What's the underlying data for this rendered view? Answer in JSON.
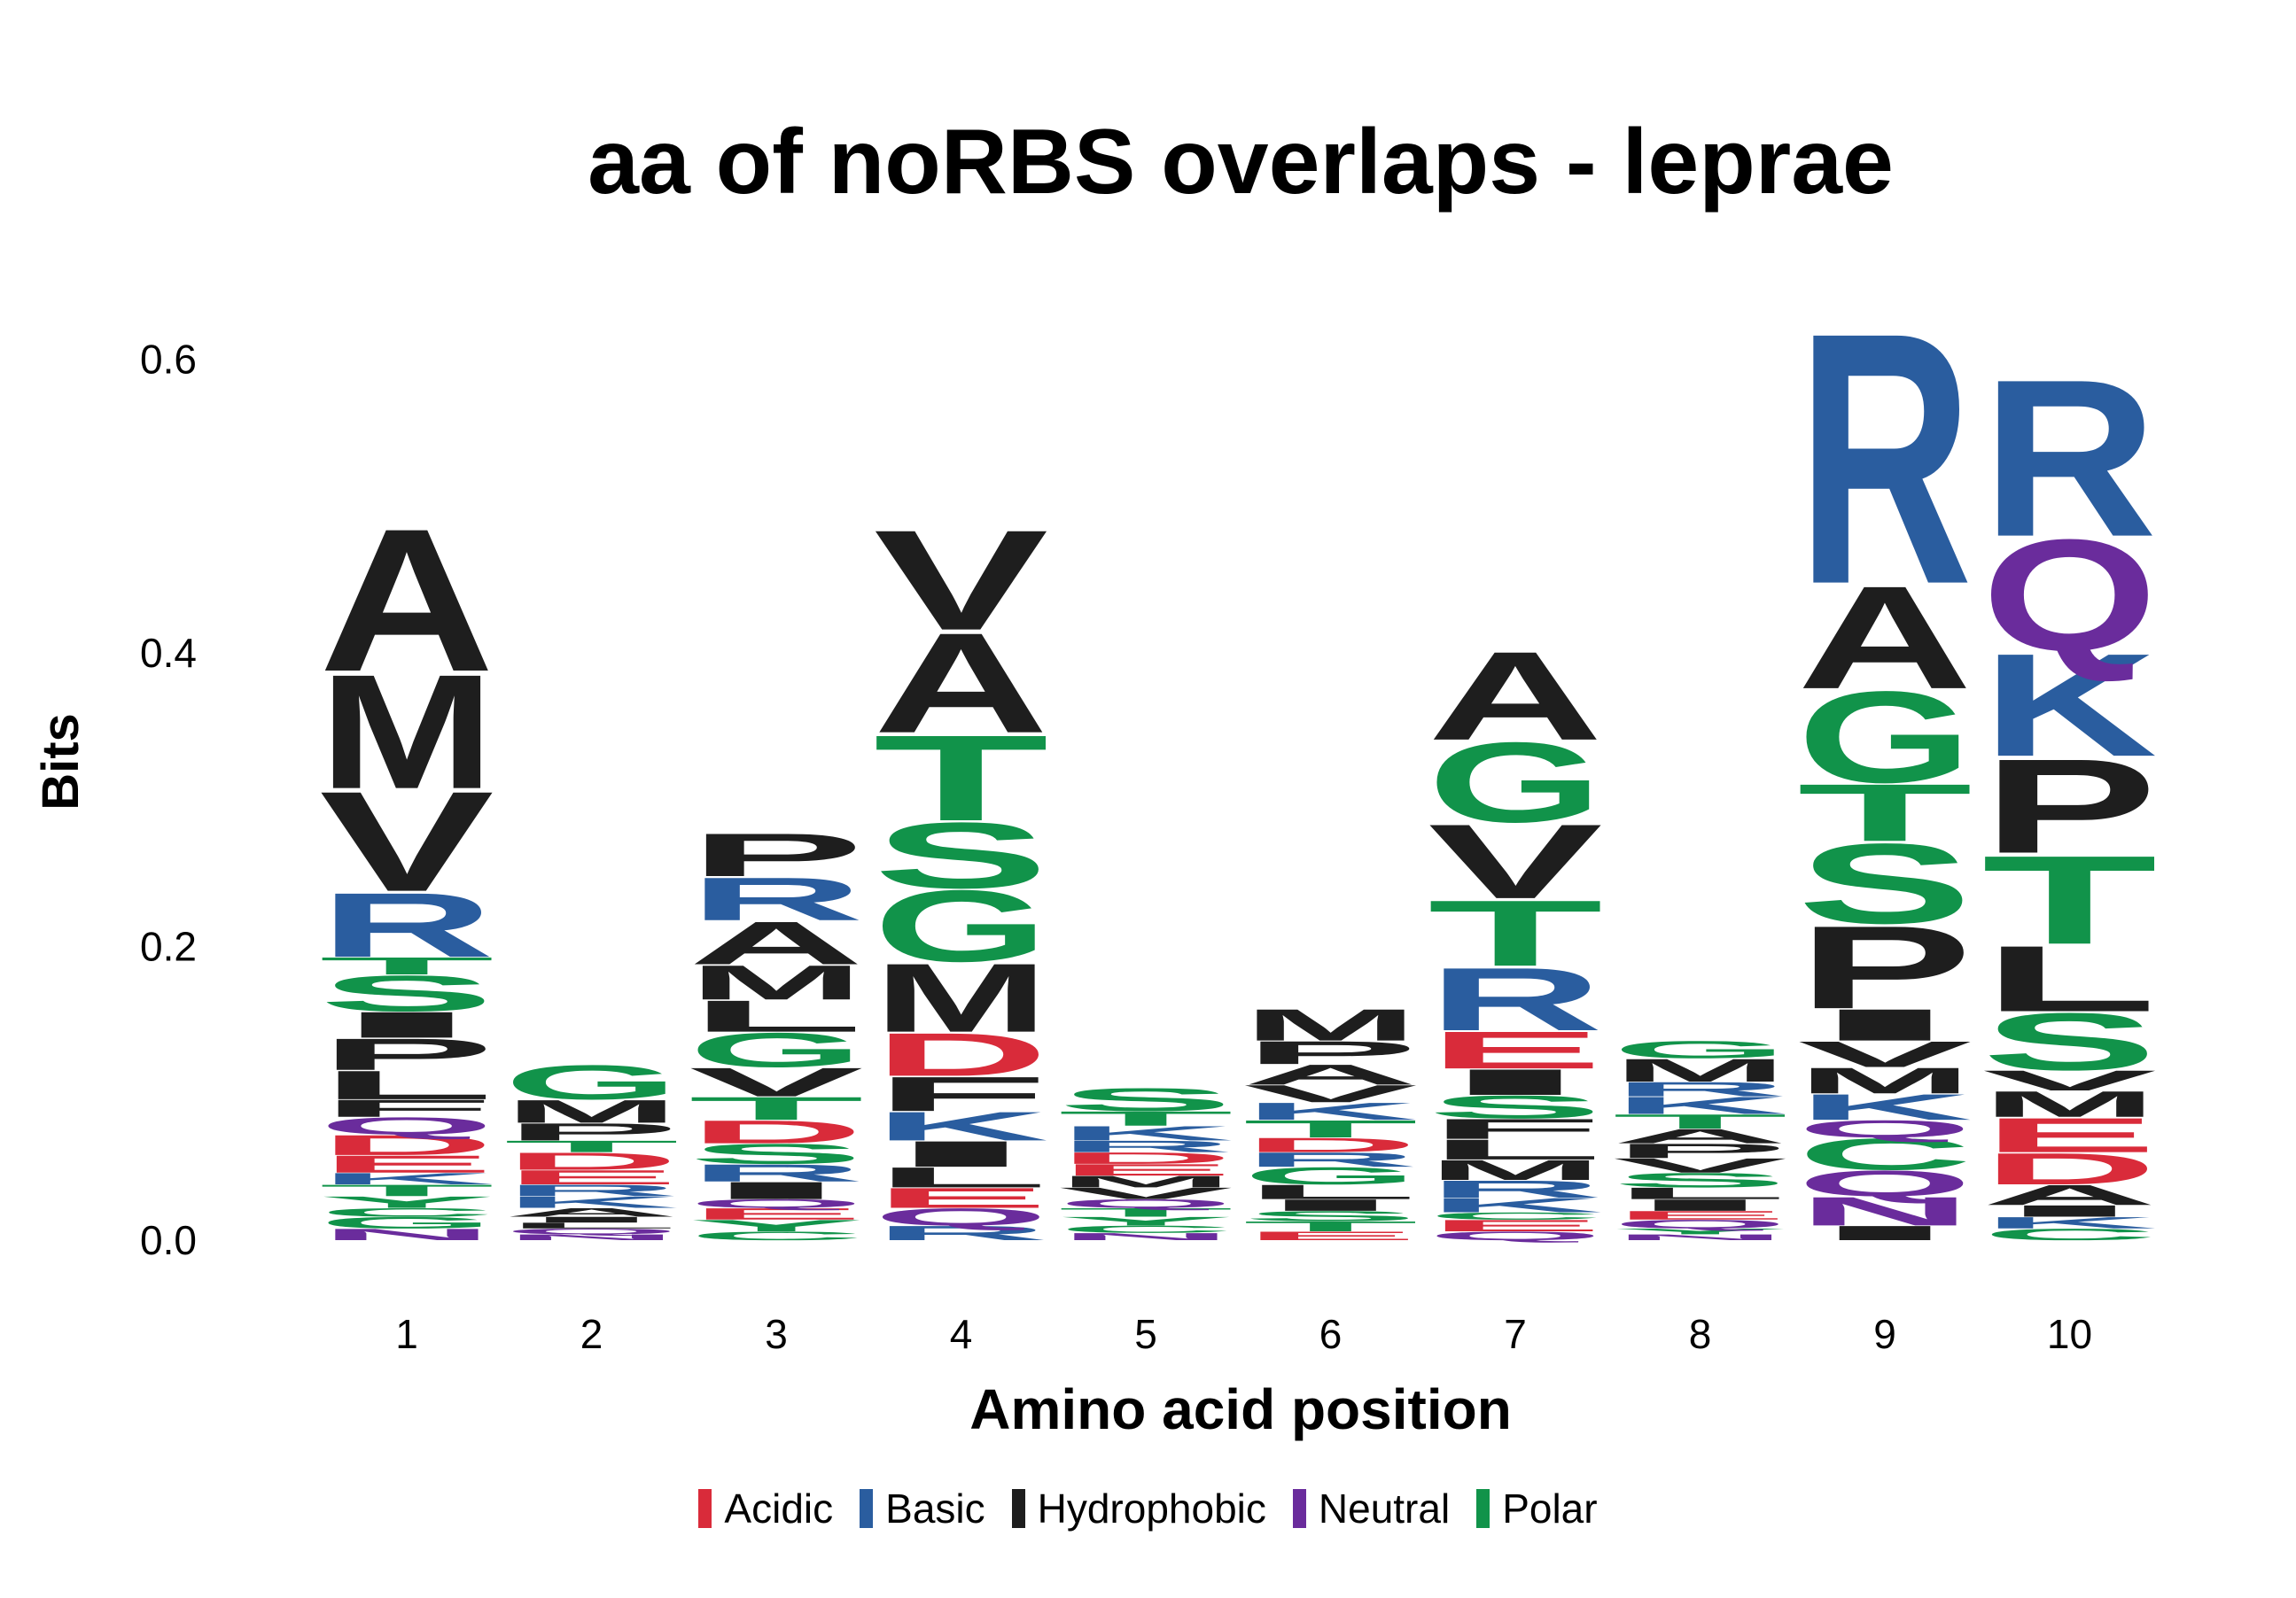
{
  "chart_data": {
    "type": "sequence-logo",
    "title": "aa of noRBS overlaps - leprae",
    "xlabel": "Amino acid position",
    "ylabel": "Bits",
    "ylim": [
      0,
      0.7
    ],
    "yticks": [
      "0.0",
      "0.2",
      "0.4",
      "0.6"
    ],
    "ytick_values": [
      0,
      0.2,
      0.4,
      0.6
    ],
    "positions": [
      "1",
      "2",
      "3",
      "4",
      "5",
      "6",
      "7",
      "8",
      "9",
      "10"
    ],
    "groups": [
      {
        "name": "Acidic",
        "color": "#d92b3a"
      },
      {
        "name": "Basic",
        "color": "#2a5d9f"
      },
      {
        "name": "Hydrophobic",
        "color": "#1e1e1e"
      },
      {
        "name": "Neutral",
        "color": "#6a2c9c"
      },
      {
        "name": "Polar",
        "color": "#11934a"
      }
    ],
    "residue_group": {
      "D": "Acidic",
      "E": "Acidic",
      "R": "Basic",
      "K": "Basic",
      "H": "Basic",
      "A": "Hydrophobic",
      "V": "Hydrophobic",
      "L": "Hydrophobic",
      "I": "Hydrophobic",
      "P": "Hydrophobic",
      "F": "Hydrophobic",
      "M": "Hydrophobic",
      "W": "Hydrophobic",
      "Q": "Neutral",
      "N": "Neutral",
      "S": "Polar",
      "G": "Polar",
      "T": "Polar",
      "Y": "Polar",
      "C": "Polar"
    },
    "stacks": [
      [
        [
          "N",
          0.008
        ],
        [
          "G",
          0.008
        ],
        [
          "C",
          0.006
        ],
        [
          "Y",
          0.008
        ],
        [
          "T",
          0.008
        ],
        [
          "K",
          0.008
        ],
        [
          "E",
          0.012
        ],
        [
          "D",
          0.014
        ],
        [
          "Q",
          0.012
        ],
        [
          "F",
          0.012
        ],
        [
          "L",
          0.02
        ],
        [
          "P",
          0.022
        ],
        [
          "I",
          0.018
        ],
        [
          "S",
          0.025
        ],
        [
          "T",
          0.012
        ],
        [
          "R",
          0.045
        ],
        [
          "V",
          0.07
        ],
        [
          "M",
          0.08
        ],
        [
          "A",
          0.1
        ]
      ],
      [
        [
          "N",
          0.004
        ],
        [
          "Q",
          0.004
        ],
        [
          "L",
          0.004
        ],
        [
          "I",
          0.004
        ],
        [
          "A",
          0.006
        ],
        [
          "K",
          0.008
        ],
        [
          "R",
          0.008
        ],
        [
          "E",
          0.01
        ],
        [
          "D",
          0.012
        ],
        [
          "T",
          0.008
        ],
        [
          "P",
          0.012
        ],
        [
          "M",
          0.016
        ],
        [
          "G",
          0.024
        ]
      ],
      [
        [
          "C",
          0.006
        ],
        [
          "Y",
          0.008
        ],
        [
          "E",
          0.008
        ],
        [
          "Q",
          0.006
        ],
        [
          "I",
          0.012
        ],
        [
          "R",
          0.012
        ],
        [
          "S",
          0.014
        ],
        [
          "D",
          0.016
        ],
        [
          "T",
          0.016
        ],
        [
          "V",
          0.02
        ],
        [
          "G",
          0.024
        ],
        [
          "L",
          0.022
        ],
        [
          "M",
          0.024
        ],
        [
          "A",
          0.03
        ],
        [
          "R",
          0.03
        ],
        [
          "P",
          0.03
        ]
      ],
      [
        [
          "R",
          0.01
        ],
        [
          "Q",
          0.012
        ],
        [
          "E",
          0.014
        ],
        [
          "L",
          0.014
        ],
        [
          "I",
          0.018
        ],
        [
          "K",
          0.02
        ],
        [
          "F",
          0.024
        ],
        [
          "D",
          0.03
        ],
        [
          "M",
          0.048
        ],
        [
          "G",
          0.05
        ],
        [
          "S",
          0.046
        ],
        [
          "T",
          0.06
        ],
        [
          "A",
          0.07
        ],
        [
          "V",
          0.07
        ]
      ],
      [
        [
          "N",
          0.005
        ],
        [
          "C",
          0.005
        ],
        [
          "Y",
          0.006
        ],
        [
          "T",
          0.006
        ],
        [
          "Q",
          0.006
        ],
        [
          "V",
          0.008
        ],
        [
          "M",
          0.008
        ],
        [
          "E",
          0.008
        ],
        [
          "D",
          0.008
        ],
        [
          "R",
          0.008
        ],
        [
          "K",
          0.01
        ],
        [
          "T",
          0.01
        ],
        [
          "S",
          0.016
        ]
      ],
      [
        [
          "E",
          0.006
        ],
        [
          "T",
          0.007
        ],
        [
          "S",
          0.007
        ],
        [
          "I",
          0.008
        ],
        [
          "L",
          0.01
        ],
        [
          "G",
          0.012
        ],
        [
          "R",
          0.01
        ],
        [
          "D",
          0.01
        ],
        [
          "T",
          0.012
        ],
        [
          "K",
          0.012
        ],
        [
          "V",
          0.012
        ],
        [
          "A",
          0.014
        ],
        [
          "P",
          0.016
        ],
        [
          "M",
          0.022
        ]
      ],
      [
        [
          "Q",
          0.006
        ],
        [
          "E",
          0.008
        ],
        [
          "C",
          0.005
        ],
        [
          "K",
          0.01
        ],
        [
          "R",
          0.012
        ],
        [
          "M",
          0.014
        ],
        [
          "L",
          0.014
        ],
        [
          "F",
          0.014
        ],
        [
          "S",
          0.016
        ],
        [
          "I",
          0.018
        ],
        [
          "E",
          0.026
        ],
        [
          "R",
          0.044
        ],
        [
          "T",
          0.046
        ],
        [
          "V",
          0.052
        ],
        [
          "G",
          0.056
        ],
        [
          "A",
          0.062
        ]
      ],
      [
        [
          "N",
          0.004
        ],
        [
          "Y",
          0.004
        ],
        [
          "Q",
          0.006
        ],
        [
          "E",
          0.006
        ],
        [
          "I",
          0.008
        ],
        [
          "L",
          0.008
        ],
        [
          "S",
          0.01
        ],
        [
          "V",
          0.01
        ],
        [
          "P",
          0.01
        ],
        [
          "A",
          0.01
        ],
        [
          "T",
          0.01
        ],
        [
          "K",
          0.012
        ],
        [
          "R",
          0.01
        ],
        [
          "M",
          0.016
        ],
        [
          "G",
          0.012
        ]
      ],
      [
        [
          "I",
          0.01
        ],
        [
          "N",
          0.02
        ],
        [
          "Q",
          0.018
        ],
        [
          "C",
          0.022
        ],
        [
          "Q",
          0.012
        ],
        [
          "K",
          0.018
        ],
        [
          "M",
          0.018
        ],
        [
          "V",
          0.018
        ],
        [
          "I",
          0.022
        ],
        [
          "P",
          0.058
        ],
        [
          "S",
          0.056
        ],
        [
          "T",
          0.04
        ],
        [
          "G",
          0.064
        ],
        [
          "A",
          0.072
        ],
        [
          "R",
          0.176
        ]
      ],
      [
        [
          "C",
          0.008
        ],
        [
          "K",
          0.008
        ],
        [
          "I",
          0.008
        ],
        [
          "A",
          0.014
        ],
        [
          "D",
          0.022
        ],
        [
          "E",
          0.024
        ],
        [
          "M",
          0.018
        ],
        [
          "V",
          0.014
        ],
        [
          "S",
          0.04
        ],
        [
          "L",
          0.046
        ],
        [
          "T",
          0.062
        ],
        [
          "P",
          0.066
        ],
        [
          "K",
          0.072
        ],
        [
          "Q",
          0.078
        ],
        [
          "R",
          0.11
        ]
      ]
    ]
  }
}
